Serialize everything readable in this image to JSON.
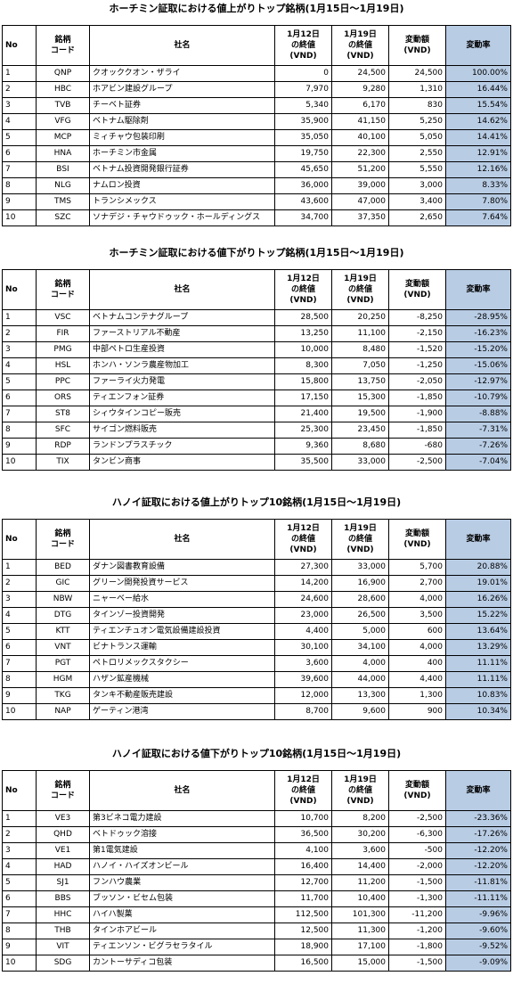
{
  "headers": {
    "no": "No",
    "code": [
      "銘柄",
      "コード"
    ],
    "name": "社名",
    "close_prev": [
      "1月12日",
      "の終値",
      "(VND)"
    ],
    "close_curr": [
      "1月19日",
      "の終値",
      "(VND)"
    ],
    "change": [
      "変動額",
      "(VND)"
    ],
    "rate": "変動率"
  },
  "sections": [
    {
      "title": "ホーチミン証取における値上がりトップ銘柄(1月15日～1月19日)",
      "rows": [
        {
          "no": "1",
          "code": "QNP",
          "name": "クオッククオン・ザライ",
          "prev": "0",
          "curr": "24,500",
          "change": "24,500",
          "rate": "100.00%"
        },
        {
          "no": "2",
          "code": "HBC",
          "name": "ホアビン建設グループ",
          "prev": "7,970",
          "curr": "9,280",
          "change": "1,310",
          "rate": "16.44%"
        },
        {
          "no": "3",
          "code": "TVB",
          "name": "チーベト証券",
          "prev": "5,340",
          "curr": "6,170",
          "change": "830",
          "rate": "15.54%"
        },
        {
          "no": "4",
          "code": "VFG",
          "name": "ベトナム駆除剤",
          "prev": "35,900",
          "curr": "41,150",
          "change": "5,250",
          "rate": "14.62%"
        },
        {
          "no": "5",
          "code": "MCP",
          "name": "ミィチャウ包装印刷",
          "prev": "35,050",
          "curr": "40,100",
          "change": "5,050",
          "rate": "14.41%"
        },
        {
          "no": "6",
          "code": "HNA",
          "name": "ホーチミン市金属",
          "prev": "19,750",
          "curr": "22,300",
          "change": "2,550",
          "rate": "12.91%"
        },
        {
          "no": "7",
          "code": "BSI",
          "name": "ベトナム投資開発銀行証券",
          "prev": "45,650",
          "curr": "51,200",
          "change": "5,550",
          "rate": "12.16%"
        },
        {
          "no": "8",
          "code": "NLG",
          "name": "ナムロン投資",
          "prev": "36,000",
          "curr": "39,000",
          "change": "3,000",
          "rate": "8.33%"
        },
        {
          "no": "9",
          "code": "TMS",
          "name": "トランシメックス",
          "prev": "43,600",
          "curr": "47,000",
          "change": "3,400",
          "rate": "7.80%"
        },
        {
          "no": "10",
          "code": "SZC",
          "name": "ソナデジ・チャウドゥック・ホールディングス",
          "prev": "34,700",
          "curr": "37,350",
          "change": "2,650",
          "rate": "7.64%"
        }
      ]
    },
    {
      "title": "ホーチミン証取における値下がりトップ銘柄(1月15日～1月19日)",
      "rows": [
        {
          "no": "1",
          "code": "VSC",
          "name": "ベトナムコンテナグループ",
          "prev": "28,500",
          "curr": "20,250",
          "change": "-8,250",
          "rate": "-28.95%"
        },
        {
          "no": "2",
          "code": "FIR",
          "name": "ファーストリアル不動産",
          "prev": "13,250",
          "curr": "11,100",
          "change": "-2,150",
          "rate": "-16.23%"
        },
        {
          "no": "3",
          "code": "PMG",
          "name": "中部ペトロ生産投資",
          "prev": "10,000",
          "curr": "8,480",
          "change": "-1,520",
          "rate": "-15.20%"
        },
        {
          "no": "4",
          "code": "HSL",
          "name": "ホンハ・ソンラ農産物加工",
          "prev": "8,300",
          "curr": "7,050",
          "change": "-1,250",
          "rate": "-15.06%"
        },
        {
          "no": "5",
          "code": "PPC",
          "name": "ファーライ火力発電",
          "prev": "15,800",
          "curr": "13,750",
          "change": "-2,050",
          "rate": "-12.97%"
        },
        {
          "no": "6",
          "code": "ORS",
          "name": "ティエンフォン証券",
          "prev": "17,150",
          "curr": "15,300",
          "change": "-1,850",
          "rate": "-10.79%"
        },
        {
          "no": "7",
          "code": "ST8",
          "name": "シィウタインコピー販売",
          "prev": "21,400",
          "curr": "19,500",
          "change": "-1,900",
          "rate": "-8.88%"
        },
        {
          "no": "8",
          "code": "SFC",
          "name": "サイゴン燃料販売",
          "prev": "25,300",
          "curr": "23,450",
          "change": "-1,850",
          "rate": "-7.31%"
        },
        {
          "no": "9",
          "code": "RDP",
          "name": "ランドンプラスチック",
          "prev": "9,360",
          "curr": "8,680",
          "change": "-680",
          "rate": "-7.26%"
        },
        {
          "no": "10",
          "code": "TIX",
          "name": "タンビン商事",
          "prev": "35,500",
          "curr": "33,000",
          "change": "-2,500",
          "rate": "-7.04%"
        }
      ]
    },
    {
      "title": "ハノイ証取における値上がりトップ10銘柄(1月15日～1月19日)",
      "rows": [
        {
          "no": "1",
          "code": "BED",
          "name": "ダナン図書教育設備",
          "prev": "27,300",
          "curr": "33,000",
          "change": "5,700",
          "rate": "20.88%"
        },
        {
          "no": "2",
          "code": "GIC",
          "name": "グリーン開発投資サービス",
          "prev": "14,200",
          "curr": "16,900",
          "change": "2,700",
          "rate": "19.01%"
        },
        {
          "no": "3",
          "code": "NBW",
          "name": "ニャーベー給水",
          "prev": "24,600",
          "curr": "28,600",
          "change": "4,000",
          "rate": "16.26%"
        },
        {
          "no": "4",
          "code": "DTG",
          "name": " タインゾー投資開発",
          "prev": "23,000",
          "curr": "26,500",
          "change": "3,500",
          "rate": "15.22%"
        },
        {
          "no": "5",
          "code": "KTT",
          "name": "ティエンチュオン電気設備建設投資",
          "prev": "4,400",
          "curr": "5,000",
          "change": "600",
          "rate": "13.64%"
        },
        {
          "no": "6",
          "code": "VNT",
          "name": "ビナトランス運輸",
          "prev": "30,100",
          "curr": "34,100",
          "change": "4,000",
          "rate": "13.29%"
        },
        {
          "no": "7",
          "code": "PGT",
          "name": "ペトロリメックスタクシー",
          "prev": "3,600",
          "curr": "4,000",
          "change": "400",
          "rate": "11.11%"
        },
        {
          "no": "8",
          "code": "HGM",
          "name": "ハザン鉱産機械",
          "prev": "39,600",
          "curr": "44,000",
          "change": "4,400",
          "rate": "11.11%"
        },
        {
          "no": "9",
          "code": "TKG",
          "name": "タンキ不動産販売建設",
          "prev": "12,000",
          "curr": "13,300",
          "change": "1,300",
          "rate": "10.83%"
        },
        {
          "no": "10",
          "code": "NAP",
          "name": "ゲーティン港湾",
          "prev": "8,700",
          "curr": "9,600",
          "change": "900",
          "rate": "10.34%"
        }
      ]
    },
    {
      "title": "ハノイ証取における値下がりトップ10銘柄(1月15日～1月19日)",
      "rows": [
        {
          "no": "1",
          "code": "VE3",
          "name": "第3ビネコ電力建設",
          "prev": "10,700",
          "curr": "8,200",
          "change": "-2,500",
          "rate": "-23.36%"
        },
        {
          "no": "2",
          "code": "QHD",
          "name": "ベトドゥック溶接",
          "prev": "36,500",
          "curr": "30,200",
          "change": "-6,300",
          "rate": "-17.26%"
        },
        {
          "no": "3",
          "code": "VE1",
          "name": "第1電気建設",
          "prev": "4,100",
          "curr": "3,600",
          "change": "-500",
          "rate": "-12.20%"
        },
        {
          "no": "4",
          "code": "HAD",
          "name": "ハノイ・ハイズオンビール",
          "prev": "16,400",
          "curr": "14,400",
          "change": "-2,000",
          "rate": "-12.20%"
        },
        {
          "no": "5",
          "code": "SJ1",
          "name": "フンハウ農業",
          "prev": "12,700",
          "curr": "11,200",
          "change": "-1,500",
          "rate": "-11.81%"
        },
        {
          "no": "6",
          "code": "BBS",
          "name": "ブッソン・ビセム包装",
          "prev": "11,700",
          "curr": "10,400",
          "change": "-1,300",
          "rate": "-11.11%"
        },
        {
          "no": "7",
          "code": "HHC",
          "name": "ハイハ製菓",
          "prev": "112,500",
          "curr": "101,300",
          "change": "-11,200",
          "rate": "-9.96%"
        },
        {
          "no": "8",
          "code": "THB",
          "name": "タインホアビール",
          "prev": "12,500",
          "curr": "11,300",
          "change": "-1,200",
          "rate": "-9.60%"
        },
        {
          "no": "9",
          "code": "VIT",
          "name": "ティエンソン・ビグラセラタイル",
          "prev": "18,900",
          "curr": "17,100",
          "change": "-1,800",
          "rate": "-9.52%"
        },
        {
          "no": "10",
          "code": "SDG",
          "name": "カントーサディコ包装",
          "prev": "16,500",
          "curr": "15,000",
          "change": "-1,500",
          "rate": "-9.09%"
        }
      ]
    }
  ]
}
